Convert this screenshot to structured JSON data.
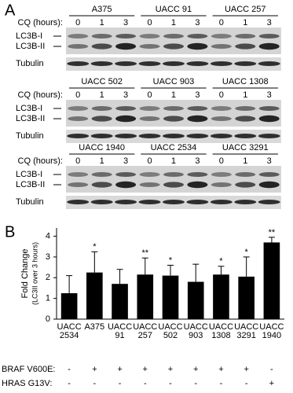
{
  "panel_a": {
    "label": "A",
    "cq_label": "CQ (hours):",
    "timepoints": [
      "0",
      "1",
      "3"
    ],
    "bands": [
      "LC3B-I",
      "LC3B-II"
    ],
    "loading_control": "Tubulin",
    "blocks": [
      {
        "cell_lines": [
          "A375",
          "UACC 91",
          "UACC 257"
        ]
      },
      {
        "cell_lines": [
          "UACC 502",
          "UACC 903",
          "UACC 1308"
        ]
      },
      {
        "cell_lines": [
          "UACC 1940",
          "UACC 2534",
          "UACC 3291"
        ]
      }
    ]
  },
  "chart_data": {
    "type": "bar",
    "panel_label": "B",
    "ylabel": "Fold Change",
    "ylabel_sub": "(LC3II over 3 hours)",
    "categories": [
      [
        "UACC",
        "2534"
      ],
      [
        "A375"
      ],
      [
        "UACC",
        "91"
      ],
      [
        "UACC",
        "257"
      ],
      [
        "UACC",
        "502"
      ],
      [
        "UACC",
        "903"
      ],
      [
        "UACC",
        "1308"
      ],
      [
        "UACC",
        "3291"
      ],
      [
        "UACC",
        "1940"
      ]
    ],
    "values": [
      1.25,
      2.25,
      1.7,
      2.15,
      2.1,
      1.8,
      2.15,
      2.05,
      3.7
    ],
    "errors": [
      0.85,
      1.0,
      0.7,
      0.8,
      0.5,
      0.85,
      0.4,
      0.95,
      0.25
    ],
    "significance": [
      null,
      "*",
      null,
      "**",
      "*",
      null,
      "*",
      "*",
      "**"
    ],
    "color": "#000000",
    "ylim": [
      0,
      4.4
    ],
    "yticks": [
      0,
      1,
      2,
      3,
      4
    ],
    "genotype_rows": [
      {
        "name": "BRAF V600E:",
        "values": [
          "-",
          "+",
          "+",
          "+",
          "+",
          "+",
          "+",
          "+",
          "-"
        ]
      },
      {
        "name": "HRAS G13V:",
        "values": [
          "-",
          "-",
          "-",
          "-",
          "-",
          "-",
          "-",
          "-",
          "+"
        ]
      }
    ]
  }
}
